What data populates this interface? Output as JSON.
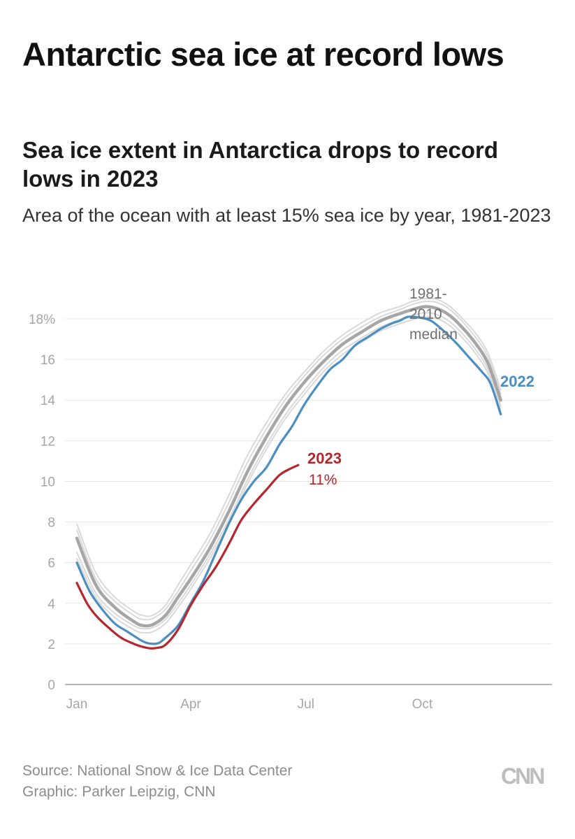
{
  "headline": "Antarctic sea ice at record lows",
  "chart_data": {
    "type": "line",
    "title": "Sea ice extent in Antarctica drops to record lows in 2023",
    "subtitle": "Area of the ocean with at least 15% sea ice by year, 1981-2023",
    "xlabel": "",
    "ylabel": "",
    "xlim": [
      0,
      365
    ],
    "ylim": [
      0,
      18
    ],
    "y_ticks": [
      0,
      2,
      4,
      6,
      8,
      10,
      12,
      14,
      16,
      18
    ],
    "y_tick_labels": [
      "0",
      "2",
      "4",
      "6",
      "8",
      "10",
      "12",
      "14",
      "16",
      "18%"
    ],
    "x_ticks": [
      {
        "day": 0,
        "label": "Jan"
      },
      {
        "day": 90,
        "label": "Apr"
      },
      {
        "day": 181,
        "label": "Jul"
      },
      {
        "day": 273,
        "label": "Oct"
      }
    ],
    "series": [
      {
        "name": "1981-2010 band upper",
        "color": "#d9d9d9",
        "x": [
          0,
          15,
          30,
          45,
          52,
          60,
          70,
          80,
          90,
          105,
          120,
          135,
          150,
          165,
          180,
          195,
          210,
          225,
          240,
          255,
          265,
          275,
          285,
          295,
          305,
          315,
          325,
          335
        ],
        "values": [
          7.9,
          5.5,
          4.3,
          3.6,
          3.4,
          3.4,
          3.9,
          4.9,
          5.9,
          7.4,
          9.3,
          11.3,
          12.9,
          14.3,
          15.4,
          16.4,
          17.2,
          17.8,
          18.3,
          18.6,
          18.85,
          19.0,
          18.95,
          18.6,
          18.0,
          17.3,
          16.3,
          14.5
        ]
      },
      {
        "name": "1981-2010 band 2",
        "color": "#d9d9d9",
        "x": [
          0,
          15,
          30,
          45,
          52,
          60,
          70,
          80,
          90,
          105,
          120,
          135,
          150,
          165,
          180,
          195,
          210,
          225,
          240,
          255,
          265,
          275,
          285,
          295,
          305,
          315,
          325,
          335
        ],
        "values": [
          7.6,
          5.2,
          4.1,
          3.4,
          3.2,
          3.25,
          3.7,
          4.6,
          5.6,
          7.1,
          8.95,
          10.95,
          12.6,
          14.05,
          15.2,
          16.2,
          17.0,
          17.6,
          18.1,
          18.45,
          18.7,
          18.85,
          18.8,
          18.45,
          17.85,
          17.1,
          16.1,
          14.3
        ]
      },
      {
        "name": "1981-2010 band 3",
        "color": "#d9d9d9",
        "x": [
          0,
          15,
          30,
          45,
          52,
          60,
          70,
          80,
          90,
          105,
          120,
          135,
          150,
          165,
          180,
          195,
          210,
          225,
          240,
          255,
          265,
          275,
          285,
          295,
          305,
          315,
          325,
          335
        ],
        "values": [
          6.5,
          4.5,
          3.5,
          2.9,
          2.75,
          2.8,
          3.2,
          4.0,
          4.9,
          6.4,
          8.1,
          10.1,
          11.8,
          13.3,
          14.5,
          15.6,
          16.45,
          17.05,
          17.6,
          17.95,
          18.15,
          18.3,
          18.2,
          17.85,
          17.25,
          16.5,
          15.5,
          13.7
        ]
      },
      {
        "name": "1981-2010 band lower",
        "color": "#d9d9d9",
        "x": [
          0,
          15,
          30,
          45,
          52,
          60,
          70,
          80,
          90,
          105,
          120,
          135,
          150,
          165,
          180,
          195,
          210,
          225,
          240,
          255,
          265,
          275,
          285,
          295,
          305,
          315,
          325,
          335
        ],
        "values": [
          6.2,
          4.3,
          3.3,
          2.7,
          2.55,
          2.6,
          3.0,
          3.8,
          4.7,
          6.2,
          7.9,
          9.9,
          11.6,
          13.1,
          14.3,
          15.4,
          16.25,
          16.85,
          17.4,
          17.75,
          17.95,
          18.1,
          18.0,
          17.65,
          17.05,
          16.3,
          15.3,
          13.5
        ]
      },
      {
        "name": "1981-2010 median",
        "color": "#a6a6a6",
        "x": [
          0,
          15,
          30,
          45,
          52,
          60,
          70,
          80,
          90,
          105,
          120,
          135,
          150,
          165,
          180,
          195,
          210,
          225,
          240,
          255,
          265,
          275,
          285,
          295,
          305,
          315,
          325,
          335
        ],
        "values": [
          7.2,
          4.9,
          3.8,
          3.1,
          2.9,
          2.95,
          3.4,
          4.3,
          5.2,
          6.7,
          8.5,
          10.5,
          12.2,
          13.7,
          14.9,
          15.9,
          16.75,
          17.35,
          17.9,
          18.25,
          18.45,
          18.6,
          18.5,
          18.15,
          17.55,
          16.8,
          15.8,
          14.0
        ]
      },
      {
        "name": "2022",
        "color": "#4a8ec2",
        "x": [
          0,
          10,
          20,
          30,
          40,
          50,
          55,
          60,
          65,
          70,
          80,
          90,
          100,
          110,
          120,
          130,
          140,
          150,
          160,
          170,
          180,
          190,
          200,
          210,
          220,
          230,
          240,
          250,
          255,
          262,
          272,
          280,
          290,
          300,
          310,
          320,
          327,
          335
        ],
        "values": [
          6.0,
          4.6,
          3.7,
          3.0,
          2.6,
          2.2,
          2.05,
          2.0,
          2.05,
          2.3,
          2.9,
          4.0,
          5.1,
          6.5,
          7.9,
          9.1,
          10.0,
          10.7,
          11.8,
          12.7,
          13.8,
          14.7,
          15.5,
          16.0,
          16.7,
          17.1,
          17.5,
          17.8,
          17.9,
          18.1,
          18.05,
          17.9,
          17.4,
          16.8,
          16.1,
          15.4,
          14.8,
          13.3
        ]
      },
      {
        "name": "2023",
        "color": "#b5272d",
        "x": [
          0,
          8,
          15,
          25,
          35,
          45,
          52,
          58,
          63,
          70,
          80,
          90,
          100,
          110,
          120,
          130,
          140,
          150,
          160,
          168,
          175
        ],
        "values": [
          5.0,
          4.0,
          3.4,
          2.8,
          2.3,
          2.0,
          1.85,
          1.78,
          1.8,
          1.95,
          2.7,
          3.9,
          4.9,
          5.8,
          6.9,
          8.1,
          8.9,
          9.6,
          10.3,
          10.6,
          10.8
        ]
      }
    ],
    "annotations": {
      "label_2023": "2023",
      "value_2023": "11%",
      "label_2022": "2022",
      "median_lines": [
        "1981-",
        "2010",
        "median"
      ]
    }
  },
  "footer": {
    "source": "Source: National Snow & Ice Data Center",
    "graphic": "Graphic: Parker Leipzig, CNN",
    "logo": "CNN"
  }
}
